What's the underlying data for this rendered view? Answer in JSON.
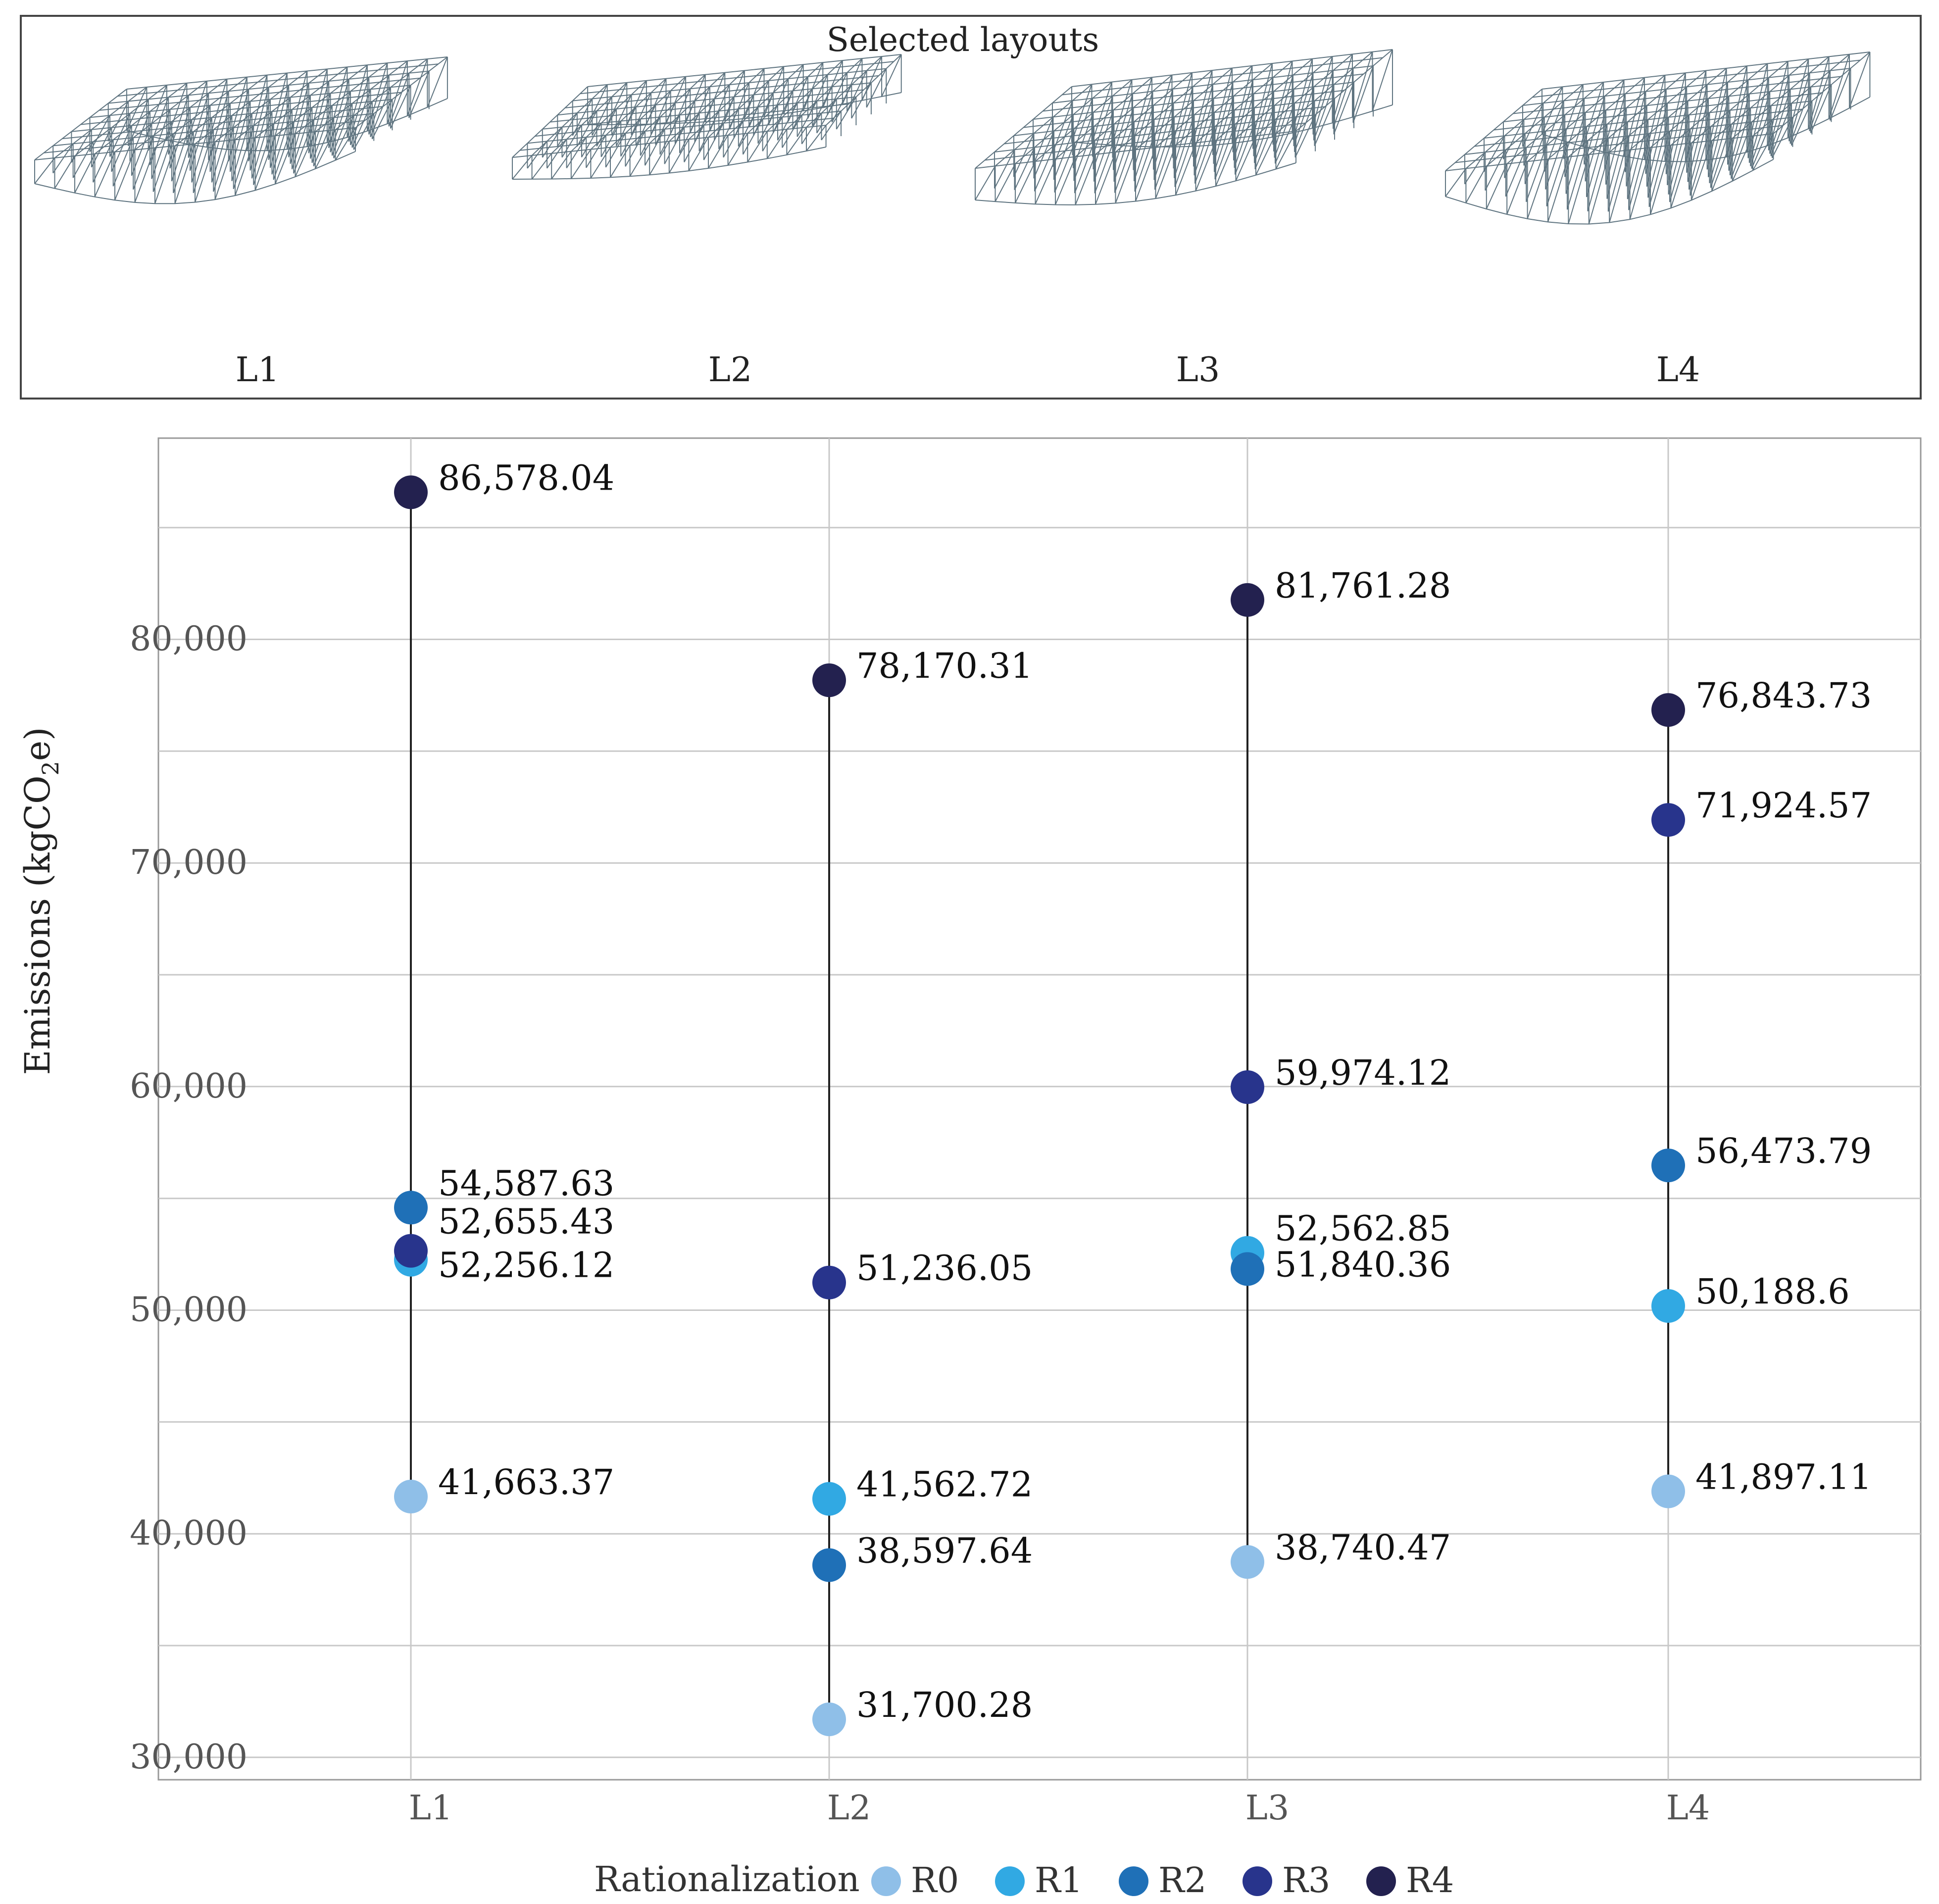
{
  "top_panel": {
    "title": "Selected layouts",
    "layouts": [
      {
        "label": "L1"
      },
      {
        "label": "L2"
      },
      {
        "label": "L3"
      },
      {
        "label": "L4"
      }
    ]
  },
  "chart_data": {
    "type": "scatter",
    "title": "",
    "xlabel": "",
    "ylabel": "Emissions (kgCO2e)",
    "ylabel_parts": {
      "pre": "Emissions (kgCO",
      "sub": "2",
      "post": "e)"
    },
    "categories": [
      "L1",
      "L2",
      "L3",
      "L4"
    ],
    "y_ticks": [
      30000,
      40000,
      50000,
      60000,
      70000,
      80000
    ],
    "y_tick_labels": [
      "30,000",
      "40,000",
      "50,000",
      "60,000",
      "70,000",
      "80,000"
    ],
    "ylim": [
      29000,
      89000
    ],
    "grid": true,
    "legend_title": "Rationalization",
    "legend_position": "bottom",
    "series": [
      {
        "name": "R0",
        "color": "#8fbfe8",
        "values": [
          41663.37,
          31700.28,
          38740.47,
          41897.11
        ],
        "labels": [
          "41,663.37",
          "31,700.28",
          "38,740.47",
          "41,897.11"
        ]
      },
      {
        "name": "R1",
        "color": "#31a9e3",
        "values": [
          52256.12,
          41562.72,
          52562.85,
          50188.6
        ],
        "labels": [
          "52,256.12",
          "41,562.72",
          "52,562.85",
          "50,188.6"
        ]
      },
      {
        "name": "R2",
        "color": "#1f70b7",
        "values": [
          54587.63,
          38597.64,
          51840.36,
          56473.79
        ],
        "labels": [
          "54,587.63",
          "38,597.64",
          "51,840.36",
          "56,473.79"
        ]
      },
      {
        "name": "R3",
        "color": "#28348c",
        "values": [
          52655.43,
          51236.05,
          59974.12,
          71924.57
        ],
        "labels": [
          "52,655.43",
          "51,236.05",
          "59,974.12",
          "71,924.57"
        ]
      },
      {
        "name": "R4",
        "color": "#23214f",
        "values": [
          86578.04,
          78170.31,
          81761.28,
          76843.73
        ],
        "labels": [
          "86,578.04",
          "78,170.31",
          "81,761.28",
          "76,843.73"
        ]
      }
    ]
  }
}
